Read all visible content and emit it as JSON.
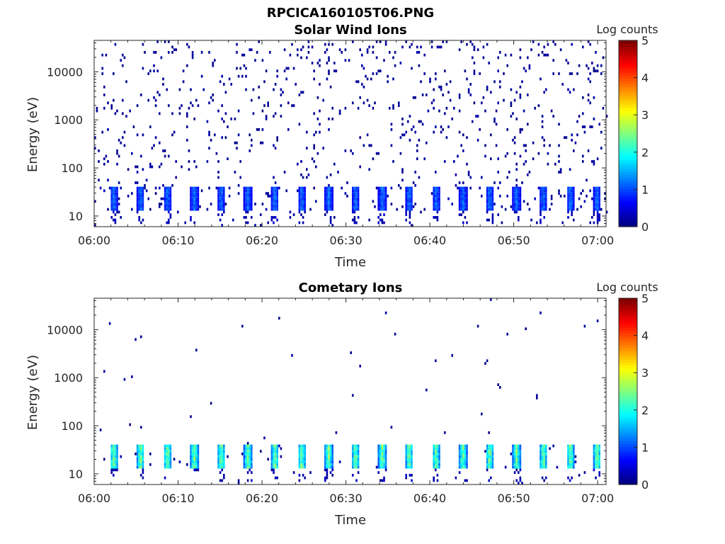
{
  "figure_title": "RPCICA160105T06.PNG",
  "chart_data": [
    {
      "type": "heatmap",
      "title": "Solar Wind Ions",
      "xlabel": "Time",
      "ylabel": "Energy (eV)",
      "x_ticks": [
        "06:00",
        "06:10",
        "06:20",
        "06:30",
        "06:40",
        "06:50",
        "07:00"
      ],
      "x_range_minutes": [
        0,
        61
      ],
      "y_scale": "log",
      "y_range": [
        6,
        45000
      ],
      "y_ticks": [
        {
          "value": 10,
          "label": "10"
        },
        {
          "value": 100,
          "label": "100"
        },
        {
          "value": 1000,
          "label": "1000"
        },
        {
          "value": 10000,
          "label": "10000"
        }
      ],
      "colorbar": {
        "label": "Log counts",
        "range": [
          0,
          5
        ],
        "ticks": [
          "0",
          "1",
          "2",
          "3",
          "4",
          "5"
        ],
        "colormap": "jet"
      },
      "sweep_period_minutes": 3.2,
      "band_energy_range_eV": [
        12,
        38
      ],
      "peak_log_counts": 1.4,
      "description_levels": {
        "background": 0.05,
        "band": 1.0
      }
    },
    {
      "type": "heatmap",
      "title": "Cometary Ions",
      "xlabel": "Time",
      "ylabel": "Energy (eV)",
      "x_ticks": [
        "06:00",
        "06:10",
        "06:20",
        "06:30",
        "06:40",
        "06:50",
        "07:00"
      ],
      "x_range_minutes": [
        0,
        61
      ],
      "y_scale": "log",
      "y_range": [
        6,
        45000
      ],
      "y_ticks": [
        {
          "value": 10,
          "label": "10"
        },
        {
          "value": 100,
          "label": "100"
        },
        {
          "value": 1000,
          "label": "1000"
        },
        {
          "value": 10000,
          "label": "10000"
        }
      ],
      "colorbar": {
        "label": "Log counts",
        "range": [
          0,
          5
        ],
        "ticks": [
          "0",
          "1",
          "2",
          "3",
          "4",
          "5"
        ],
        "colormap": "jet"
      },
      "sweep_period_minutes": 3.2,
      "band_energy_range_eV": [
        12,
        38
      ],
      "peak_log_counts": 2.9,
      "description_levels": {
        "background": 0.003,
        "band": 2.5
      }
    }
  ]
}
